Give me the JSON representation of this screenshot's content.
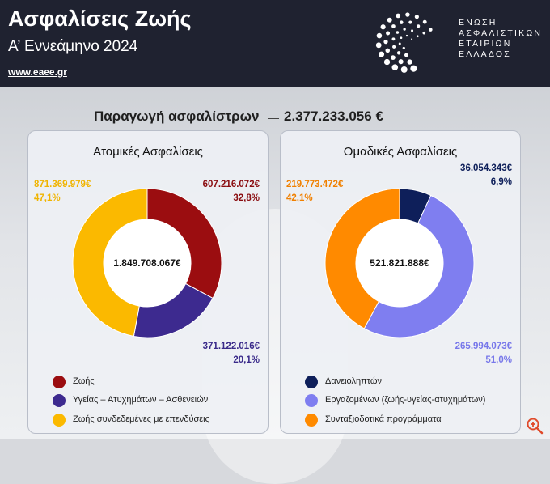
{
  "header": {
    "title": "Ασφαλίσεις Ζωής",
    "subtitle": "Α’ Εννεάμηνο 2024",
    "site": "www.eaee.gr",
    "logo_text": [
      "ΕΝΩΣΗ",
      "ΑΣΦΑΛΙΣΤΙΚΩΝ",
      "ΕΤΑΙΡΙΩΝ",
      "ΕΛΛΑΔΟΣ"
    ]
  },
  "headline": {
    "label": "Παραγωγή ασφαλίστρων",
    "value": "2.377.233.056 €"
  },
  "chart_data": [
    {
      "type": "pie",
      "title": "Ατομικές Ασφαλίσεις",
      "center_label": "1.849.708.067€",
      "slices": [
        {
          "name": "Ζωής",
          "value": 607216072,
          "value_label": "607.216.072€",
          "percent_label": "32,8%",
          "color": "#9b0d10"
        },
        {
          "name": "Υγείας – Ατυχημάτων – Ασθενειών",
          "value": 371122016,
          "value_label": "371.122.016€",
          "percent_label": "20,1%",
          "color": "#3d2a8f"
        },
        {
          "name": "Ζωής συνδεδεμένες με επενδύσεις",
          "value": 871369979,
          "value_label": "871.369.979€",
          "percent_label": "47,1%",
          "color": "#fbb900"
        }
      ]
    },
    {
      "type": "pie",
      "title": "Ομαδικές Ασφαλίσεις",
      "center_label": "521.821.888€",
      "slices": [
        {
          "name": "Δανειοληπτών",
          "value": 36054343,
          "value_label": "36.054.343€",
          "percent_label": "6,9%",
          "color": "#0e1f5a"
        },
        {
          "name": "Εργαζομένων (ζωής-υγείας-ατυχημάτων)",
          "value": 265994073,
          "value_label": "265.994.073€",
          "percent_label": "51,0%",
          "color": "#7f7ef0"
        },
        {
          "name": "Συνταξιοδοτικά προγράμματα",
          "value": 219773472,
          "value_label": "219.773.472€",
          "percent_label": "42,1%",
          "color": "#ff8a00"
        }
      ]
    }
  ]
}
